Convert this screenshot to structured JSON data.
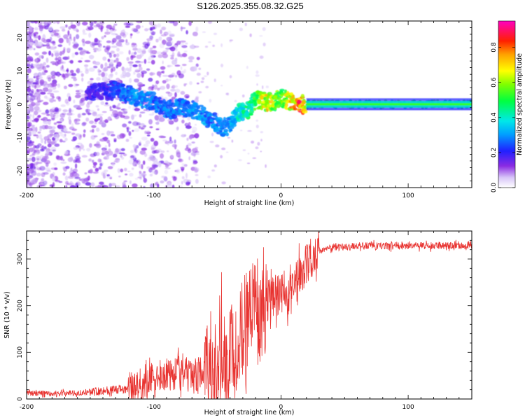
{
  "figure": {
    "title": "S126.2025.355.08.32.G25"
  },
  "chart_data": [
    {
      "type": "heatmap",
      "name": "spectrogram",
      "title": "",
      "xlabel": "Height of straight line (km)",
      "ylabel": "Frequency (Hz)",
      "xlim": [
        -200,
        150
      ],
      "ylim": [
        -25,
        25
      ],
      "xticks": [
        -200,
        -100,
        0,
        100
      ],
      "yticks": [
        -20,
        -10,
        0,
        10,
        20
      ],
      "colorbar": {
        "label": "Normalized spectral amplitude",
        "range": [
          0,
          0.95
        ],
        "ticks": [
          0.0,
          0.2,
          0.4,
          0.6,
          0.8
        ],
        "tick_labels": [
          "0.0",
          "0.2",
          "0.4",
          "0.6",
          "0.8"
        ]
      },
      "ridge": [
        {
          "x": -150,
          "y": 3.5,
          "a": 0.2
        },
        {
          "x": -140,
          "y": 4.0,
          "a": 0.2
        },
        {
          "x": -130,
          "y": 4.2,
          "a": 0.25
        },
        {
          "x": -120,
          "y": 3.0,
          "a": 0.3
        },
        {
          "x": -110,
          "y": 1.5,
          "a": 0.35
        },
        {
          "x": -100,
          "y": 1.0,
          "a": 0.3
        },
        {
          "x": -95,
          "y": -1.0,
          "a": 0.3
        },
        {
          "x": -85,
          "y": -1.5,
          "a": 0.3
        },
        {
          "x": -75,
          "y": -1.0,
          "a": 0.3
        },
        {
          "x": -65,
          "y": -2.0,
          "a": 0.35
        },
        {
          "x": -55,
          "y": -5.0,
          "a": 0.3
        },
        {
          "x": -45,
          "y": -7.0,
          "a": 0.35
        },
        {
          "x": -40,
          "y": -6.0,
          "a": 0.35
        },
        {
          "x": -35,
          "y": -3.0,
          "a": 0.4
        },
        {
          "x": -30,
          "y": -2.0,
          "a": 0.45
        },
        {
          "x": -25,
          "y": -2.0,
          "a": 0.5
        },
        {
          "x": -20,
          "y": 1.5,
          "a": 0.55
        },
        {
          "x": -15,
          "y": 1.0,
          "a": 0.7
        },
        {
          "x": -10,
          "y": 0.5,
          "a": 0.75
        },
        {
          "x": -5,
          "y": 1.0,
          "a": 0.65
        },
        {
          "x": 0,
          "y": 2.5,
          "a": 0.6
        },
        {
          "x": 5,
          "y": 1.0,
          "a": 0.7
        },
        {
          "x": 10,
          "y": 0.5,
          "a": 0.8
        },
        {
          "x": 15,
          "y": 0.0,
          "a": 0.9
        },
        {
          "x": 20,
          "y": 0.0,
          "a": 0.65
        },
        {
          "x": 30,
          "y": 0.0,
          "a": 0.6
        },
        {
          "x": 60,
          "y": 0.0,
          "a": 0.55
        },
        {
          "x": 100,
          "y": 0.0,
          "a": 0.55
        },
        {
          "x": 150,
          "y": 0.0,
          "a": 0.5
        }
      ]
    },
    {
      "type": "line",
      "name": "snr",
      "title": "",
      "xlabel": "Height of straight line (km)",
      "ylabel": "SNR (10 * v/v)",
      "xlim": [
        -200,
        150
      ],
      "ylim": [
        0,
        360
      ],
      "xticks": [
        -200,
        -100,
        0,
        100
      ],
      "yticks": [
        0,
        100,
        200,
        300
      ],
      "color": "#e8322f",
      "series": [
        {
          "name": "SNR",
          "x": [
            -200,
            -180,
            -160,
            -140,
            -120,
            -110,
            -100,
            -90,
            -80,
            -70,
            -60,
            -50,
            -45,
            -40,
            -35,
            -30,
            -25,
            -20,
            -18,
            -15,
            -10,
            -5,
            0,
            5,
            10,
            15,
            20,
            25,
            30,
            40,
            60,
            80,
            100,
            120,
            150
          ],
          "values": [
            12,
            12,
            13,
            18,
            20,
            28,
            40,
            55,
            60,
            50,
            55,
            70,
            85,
            100,
            120,
            150,
            190,
            220,
            160,
            180,
            210,
            220,
            230,
            210,
            230,
            270,
            290,
            305,
            318,
            325,
            328,
            328,
            328,
            328,
            330
          ]
        }
      ]
    }
  ]
}
